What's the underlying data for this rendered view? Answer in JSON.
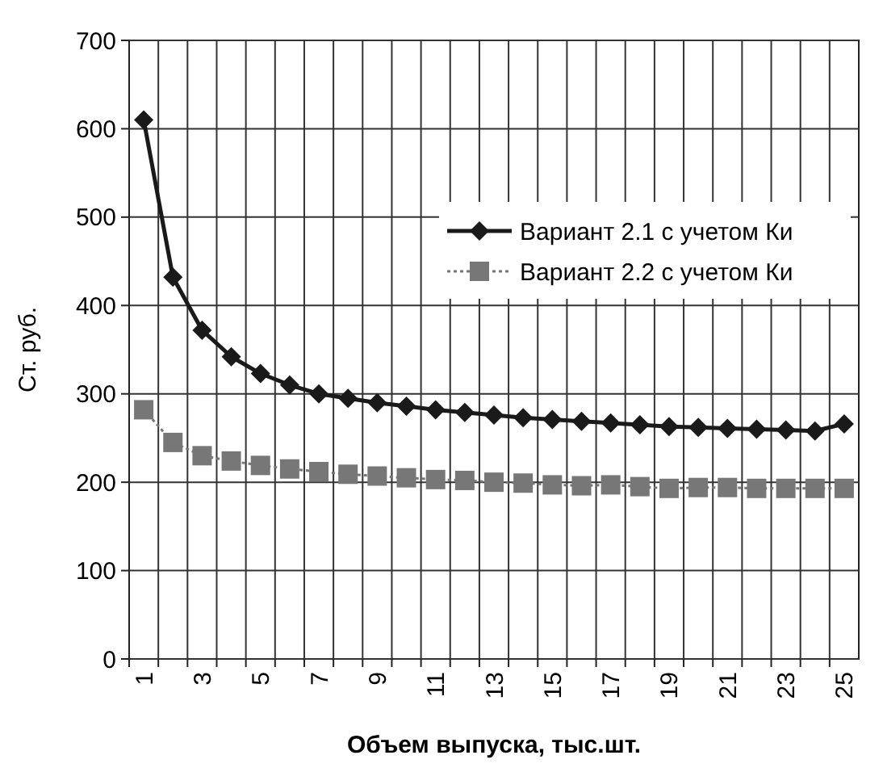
{
  "chart_data": {
    "type": "line",
    "xlabel": "Объем выпуска, тыс.шт.",
    "ylabel": "Ст. руб.",
    "categories": [
      "1",
      null,
      "3",
      null,
      "5",
      null,
      "7",
      null,
      "9",
      null,
      "11",
      null,
      "13",
      null,
      "15",
      null,
      "17",
      null,
      "19",
      null,
      "21",
      null,
      "23",
      null,
      "25"
    ],
    "ylim": [
      0,
      700
    ],
    "yticks": [
      0,
      100,
      200,
      300,
      400,
      500,
      600,
      700
    ],
    "grid": true,
    "legend": "right",
    "series": [
      {
        "name": "Вариант 2.1 с учетом Ки",
        "color": "#1a1a1a",
        "marker": "diamond",
        "line_style": "solid",
        "values": [
          610,
          432,
          372,
          342,
          323,
          310,
          300,
          295,
          290,
          286,
          282,
          279,
          276,
          273,
          271,
          269,
          267,
          265,
          263,
          262,
          261,
          260,
          259,
          258,
          266
        ]
      },
      {
        "name": "Вариант 2.2 с учетом Ки",
        "color": "#777777",
        "marker": "square",
        "line_style": "dotted",
        "values": [
          282,
          245,
          230,
          224,
          219,
          215,
          212,
          209,
          207,
          205,
          203,
          202,
          200,
          199,
          197,
          196,
          197,
          195,
          193,
          194,
          194,
          193,
          193,
          193,
          193
        ]
      }
    ]
  }
}
